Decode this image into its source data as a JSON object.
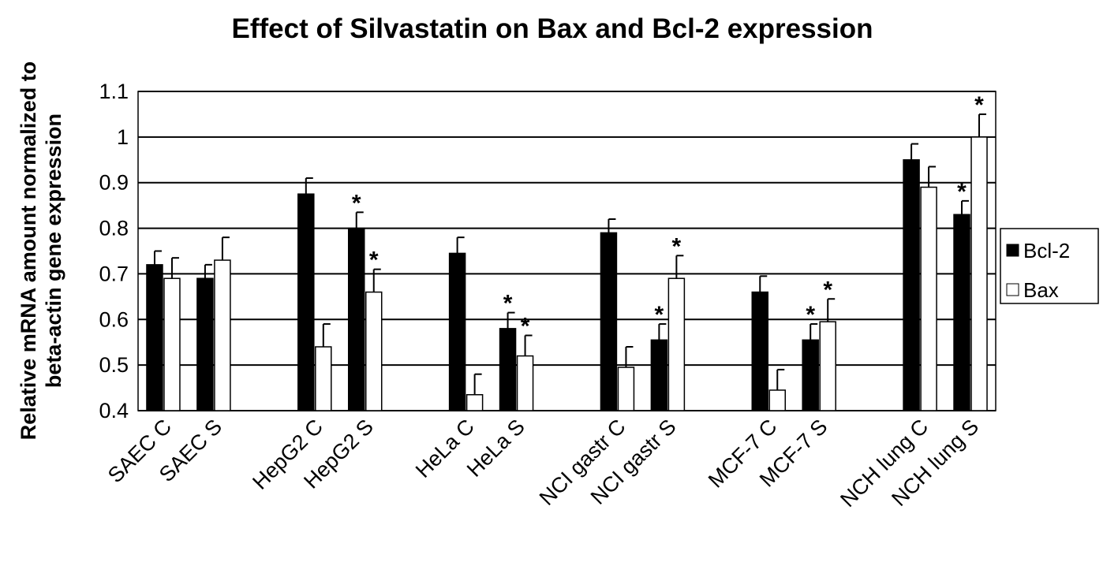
{
  "chart_data": {
    "type": "bar",
    "title": "Effect of Silvastatin on Bax and Bcl-2 expression",
    "ylabel_lines": [
      "Relative mRNA amount normalized to",
      "beta-actin gene expression"
    ],
    "xlabel": "",
    "ylim": [
      0.4,
      1.1
    ],
    "yticks": [
      "0.4",
      "0.5",
      "0.6",
      "0.7",
      "0.8",
      "0.9",
      "1",
      "1.1"
    ],
    "grid": true,
    "legend_position": "right",
    "categories": [
      "SAEC C",
      "SAEC S",
      "",
      "HepG2 C",
      "HepG2 S",
      "",
      "HeLa C",
      "HeLa S",
      "",
      "NCI gastr C",
      "NCI gastr S",
      "",
      "MCF-7 C",
      "MCF-7 S",
      "",
      "NCH lung C",
      "NCH lung S"
    ],
    "series": [
      {
        "name": "Bcl-2",
        "color": "#000000",
        "values": [
          0.72,
          0.69,
          null,
          0.875,
          0.8,
          null,
          0.745,
          0.58,
          null,
          0.79,
          0.555,
          null,
          0.66,
          0.555,
          null,
          0.95,
          0.83
        ],
        "errors": [
          0.03,
          0.03,
          null,
          0.035,
          0.035,
          null,
          0.035,
          0.035,
          null,
          0.03,
          0.035,
          null,
          0.035,
          0.035,
          null,
          0.035,
          0.03
        ],
        "significant": [
          false,
          false,
          false,
          false,
          true,
          false,
          false,
          true,
          false,
          false,
          true,
          false,
          false,
          true,
          false,
          false,
          true
        ]
      },
      {
        "name": "Bax",
        "color": "#ffffff",
        "values": [
          0.69,
          0.73,
          null,
          0.54,
          0.66,
          null,
          0.435,
          0.52,
          null,
          0.495,
          0.69,
          null,
          0.445,
          0.595,
          null,
          0.89,
          1.0
        ],
        "errors": [
          0.045,
          0.05,
          null,
          0.05,
          0.05,
          null,
          0.045,
          0.045,
          null,
          0.045,
          0.05,
          null,
          0.045,
          0.05,
          null,
          0.045,
          0.05
        ],
        "significant": [
          false,
          false,
          false,
          false,
          true,
          false,
          false,
          true,
          false,
          false,
          true,
          false,
          false,
          true,
          false,
          false,
          true
        ]
      }
    ],
    "annotation_symbol": "*"
  }
}
